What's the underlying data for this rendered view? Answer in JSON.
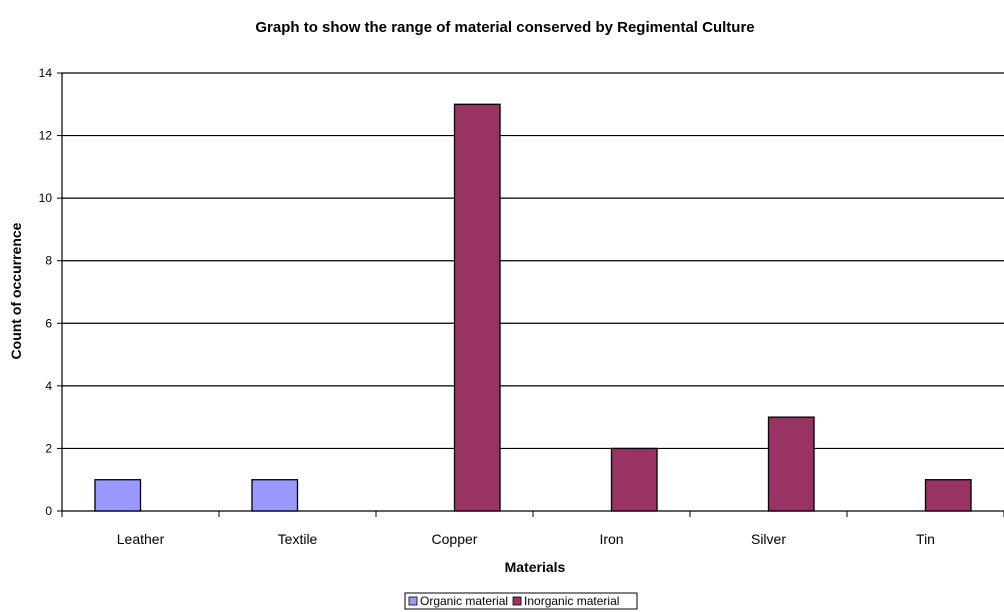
{
  "chart_data": {
    "type": "bar",
    "title": "Graph to show the range of material conserved by Regimental Culture",
    "xlabel": "Materials",
    "ylabel": "Count of occurrence",
    "categories": [
      "Leather",
      "Textile",
      "Copper",
      "Iron",
      "Silver",
      "Tin"
    ],
    "series": [
      {
        "name": "Organic material",
        "color": "#9999ff",
        "values": [
          1,
          1,
          0,
          0,
          0,
          0
        ]
      },
      {
        "name": "Inorganic material",
        "color": "#993366",
        "values": [
          0,
          0,
          13,
          2,
          3,
          1
        ]
      }
    ],
    "ylim": [
      0,
      14
    ],
    "yticks": [
      0,
      2,
      4,
      6,
      8,
      10,
      12,
      14
    ],
    "grid": true,
    "legend_position": "bottom"
  }
}
